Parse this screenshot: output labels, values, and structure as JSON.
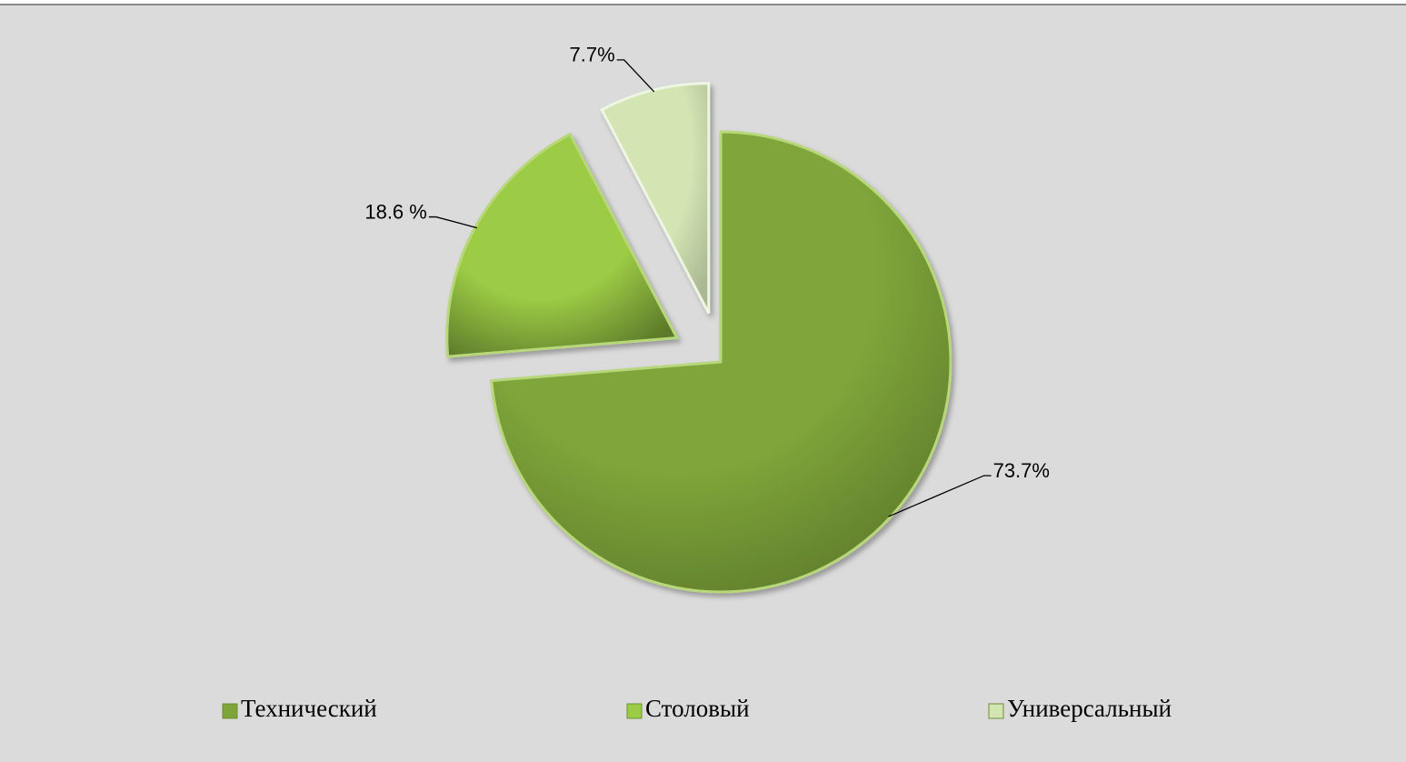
{
  "chart_data": {
    "type": "pie",
    "categories": [
      "Технический",
      "Столовый",
      "Универсальный"
    ],
    "values": [
      73.7,
      18.6,
      7.7
    ],
    "value_labels": [
      "73.7%",
      "18.6 %",
      "7.7%"
    ],
    "colors": [
      "#7fa53a",
      "#9ccc45",
      "#d3e5b2"
    ],
    "legend": "bottom"
  }
}
